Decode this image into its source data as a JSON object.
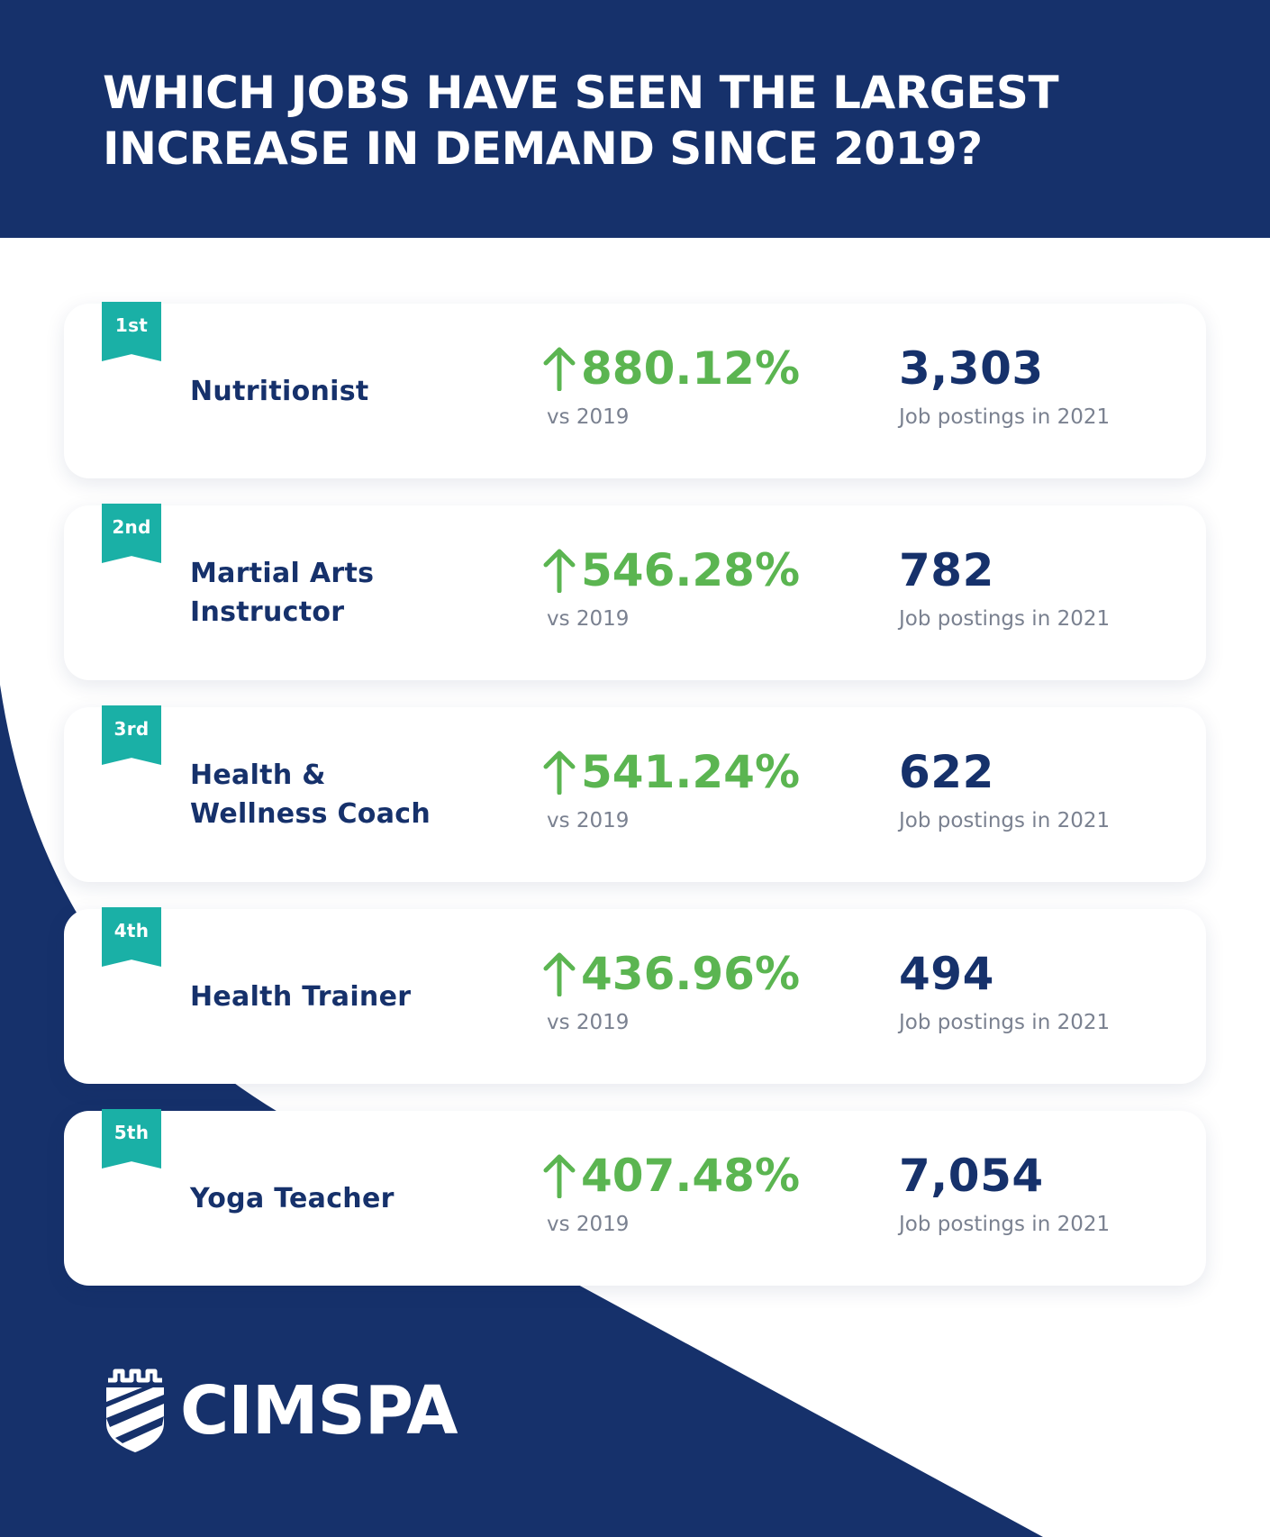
{
  "colors": {
    "navy": "#16316b",
    "teal": "#1ab0a6",
    "green": "#5bb551",
    "caption_gray": "#7a8190",
    "white": "#ffffff"
  },
  "header": {
    "title_line1": "WHICH JOBS HAVE SEEN THE LARGEST",
    "title_line2": "INCREASE IN DEMAND SINCE 2019?"
  },
  "jobs": [
    {
      "rank": "1st",
      "name_line1": "Nutritionist",
      "name_line2": "",
      "increase": "880.12%",
      "increase_caption": "vs 2019",
      "postings": "3,303",
      "postings_caption": "Job postings in 2021"
    },
    {
      "rank": "2nd",
      "name_line1": "Martial Arts",
      "name_line2": "Instructor",
      "increase": "546.28%",
      "increase_caption": "vs 2019",
      "postings": "782",
      "postings_caption": "Job postings in 2021"
    },
    {
      "rank": "3rd",
      "name_line1": "Health &",
      "name_line2": "Wellness Coach",
      "increase": "541.24%",
      "increase_caption": "vs 2019",
      "postings": "622",
      "postings_caption": "Job postings in 2021"
    },
    {
      "rank": "4th",
      "name_line1": "Health Trainer",
      "name_line2": "",
      "increase": "436.96%",
      "increase_caption": "vs 2019",
      "postings": "494",
      "postings_caption": "Job postings in 2021"
    },
    {
      "rank": "5th",
      "name_line1": "Yoga Teacher",
      "name_line2": "",
      "increase": "407.48%",
      "increase_caption": "vs 2019",
      "postings": "7,054",
      "postings_caption": "Job postings in 2021"
    }
  ],
  "icons": {
    "increase": "arrow-up-icon",
    "rank": "ribbon-icon",
    "logo": "shield-logo-icon"
  },
  "logo": {
    "text": "CIMSPA"
  }
}
